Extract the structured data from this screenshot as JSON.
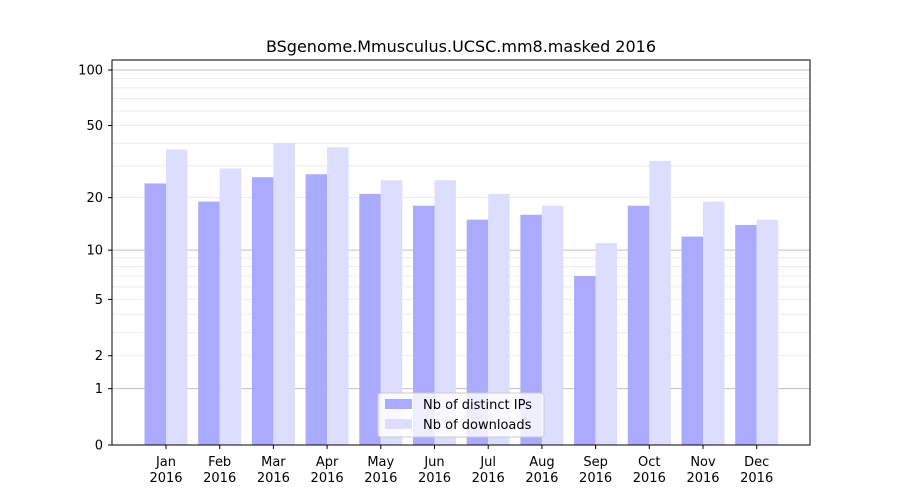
{
  "chart_data": {
    "type": "bar",
    "title": "BSgenome.Mmusculus.UCSC.mm8.masked 2016",
    "xlabel": "",
    "ylabel": "",
    "yscale": "log1p",
    "ylim": [
      0,
      120
    ],
    "yticks": [
      0,
      1,
      2,
      5,
      10,
      20,
      50,
      100
    ],
    "ytick_labels": [
      "0",
      "1",
      "2",
      "5",
      "10",
      "20",
      "50",
      "100"
    ],
    "grid": "horizontal, major and minor",
    "legend": "bottom-center",
    "categories": [
      [
        "Jan",
        "2016"
      ],
      [
        "Feb",
        "2016"
      ],
      [
        "Mar",
        "2016"
      ],
      [
        "Apr",
        "2016"
      ],
      [
        "May",
        "2016"
      ],
      [
        "Jun",
        "2016"
      ],
      [
        "Jul",
        "2016"
      ],
      [
        "Aug",
        "2016"
      ],
      [
        "Sep",
        "2016"
      ],
      [
        "Oct",
        "2016"
      ],
      [
        "Nov",
        "2016"
      ],
      [
        "Dec",
        "2016"
      ]
    ],
    "series": [
      {
        "name": "Nb of distinct IPs",
        "color": "#aaaaff",
        "values": [
          24,
          19,
          26,
          27,
          21,
          18,
          15,
          16,
          7,
          18,
          12,
          14
        ]
      },
      {
        "name": "Nb of downloads",
        "color": "#ddddff",
        "values": [
          37,
          29,
          40,
          38,
          25,
          25,
          21,
          18,
          11,
          32,
          19,
          15
        ]
      }
    ]
  }
}
